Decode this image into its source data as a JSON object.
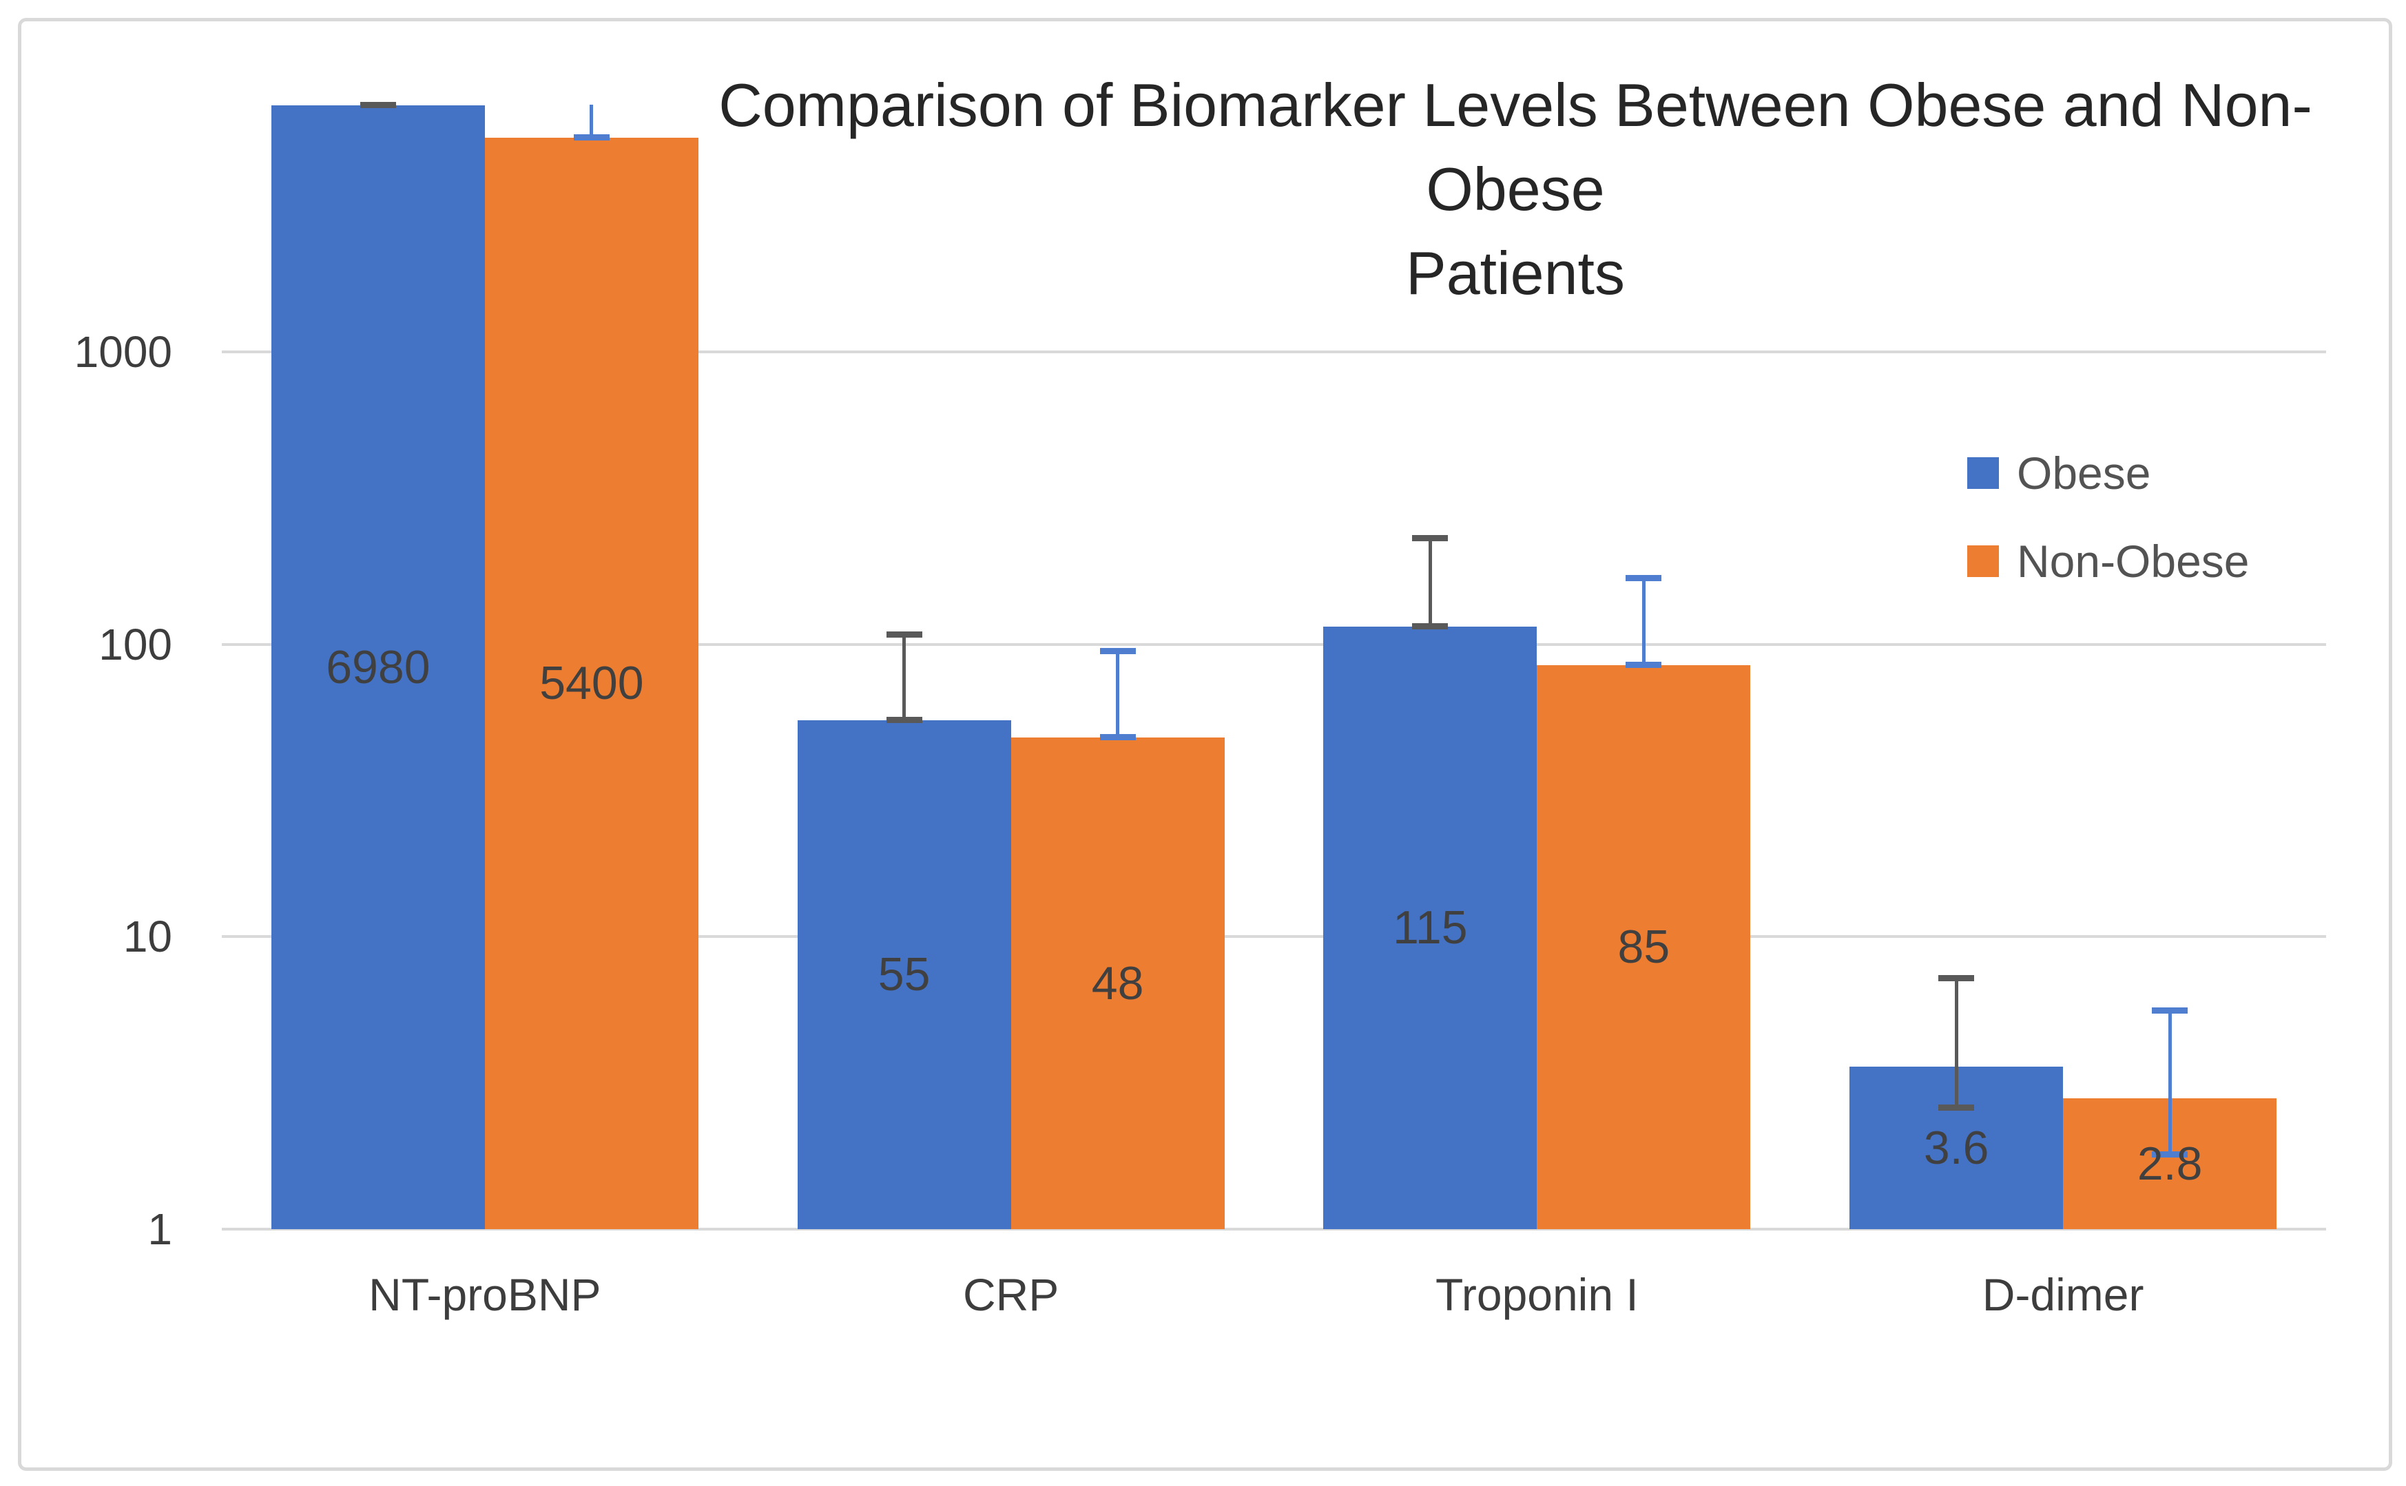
{
  "frame": {
    "border_color": "#d9d9d9",
    "background": "#ffffff"
  },
  "title": {
    "line1": "Comparison of Biomarker Levels Between Obese and Non-Obese",
    "line2": "Patients"
  },
  "legend": {
    "position": "right"
  },
  "chart_data": {
    "type": "bar",
    "title": "Comparison of Biomarker Levels Between Obese and Non-Obese Patients",
    "xlabel": "",
    "ylabel": "",
    "y_axis": {
      "scale": "log",
      "min": 1,
      "max": 7000,
      "tick_labels": [
        "1000",
        "100",
        "10",
        "1"
      ],
      "tick_values": [
        1000,
        100,
        10,
        1
      ],
      "gridlines": true,
      "gridline_color": "#d9d9d9"
    },
    "categories": [
      "NT-proBNP",
      "CRP",
      "Troponin I",
      "D-dimer"
    ],
    "series": [
      {
        "name": "Obese",
        "color": "#4472C4",
        "error_bar_color": "#595959",
        "values": [
          6980,
          55,
          115,
          3.6
        ],
        "data_labels": [
          "6980",
          "55",
          "115",
          "3.6"
        ],
        "error_low": [
          6980,
          55,
          115,
          2.6
        ],
        "error_high": [
          7000,
          108,
          230,
          7.2
        ]
      },
      {
        "name": "Non-Obese",
        "color": "#ED7D31",
        "error_bar_color": "#4F7DD0",
        "values": [
          5400,
          48,
          85,
          2.8
        ],
        "data_labels": [
          "5400",
          "48",
          "85",
          "2.8"
        ],
        "error_low": [
          5400,
          48,
          85,
          1.8
        ],
        "error_high": [
          7000,
          95,
          168,
          5.6
        ]
      }
    ],
    "legend_entries": [
      "Obese",
      "Non-Obese"
    ],
    "legend_position": "right",
    "data_label_color": "#404040",
    "data_label_position": "center"
  }
}
